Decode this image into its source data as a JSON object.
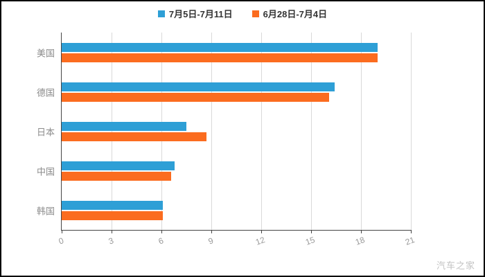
{
  "page": {
    "watermark": "汽车之家"
  },
  "chart_data": {
    "type": "bar",
    "orientation": "horizontal",
    "title": "",
    "xlabel": "",
    "ylabel": "",
    "categories": [
      "美国",
      "德国",
      "日本",
      "中国",
      "韩国"
    ],
    "series": [
      {
        "name": "7月5日-7月11日",
        "color": "#2E9FD6",
        "values": [
          19.0,
          16.4,
          7.5,
          6.8,
          6.1
        ]
      },
      {
        "name": "6月28日-7月4日",
        "color": "#FB6C1F",
        "values": [
          19.0,
          16.1,
          8.7,
          6.6,
          6.1
        ]
      }
    ],
    "x_ticks": [
      0,
      3,
      6,
      9,
      12,
      15,
      18,
      21
    ],
    "xlim": [
      0,
      21
    ],
    "grid": true,
    "legend_position": "top"
  },
  "layout_colors": {
    "axis": "#444444",
    "gridline": "#d9d9d9",
    "tick_label": "#999999",
    "category_label": "#8c8c8c"
  }
}
